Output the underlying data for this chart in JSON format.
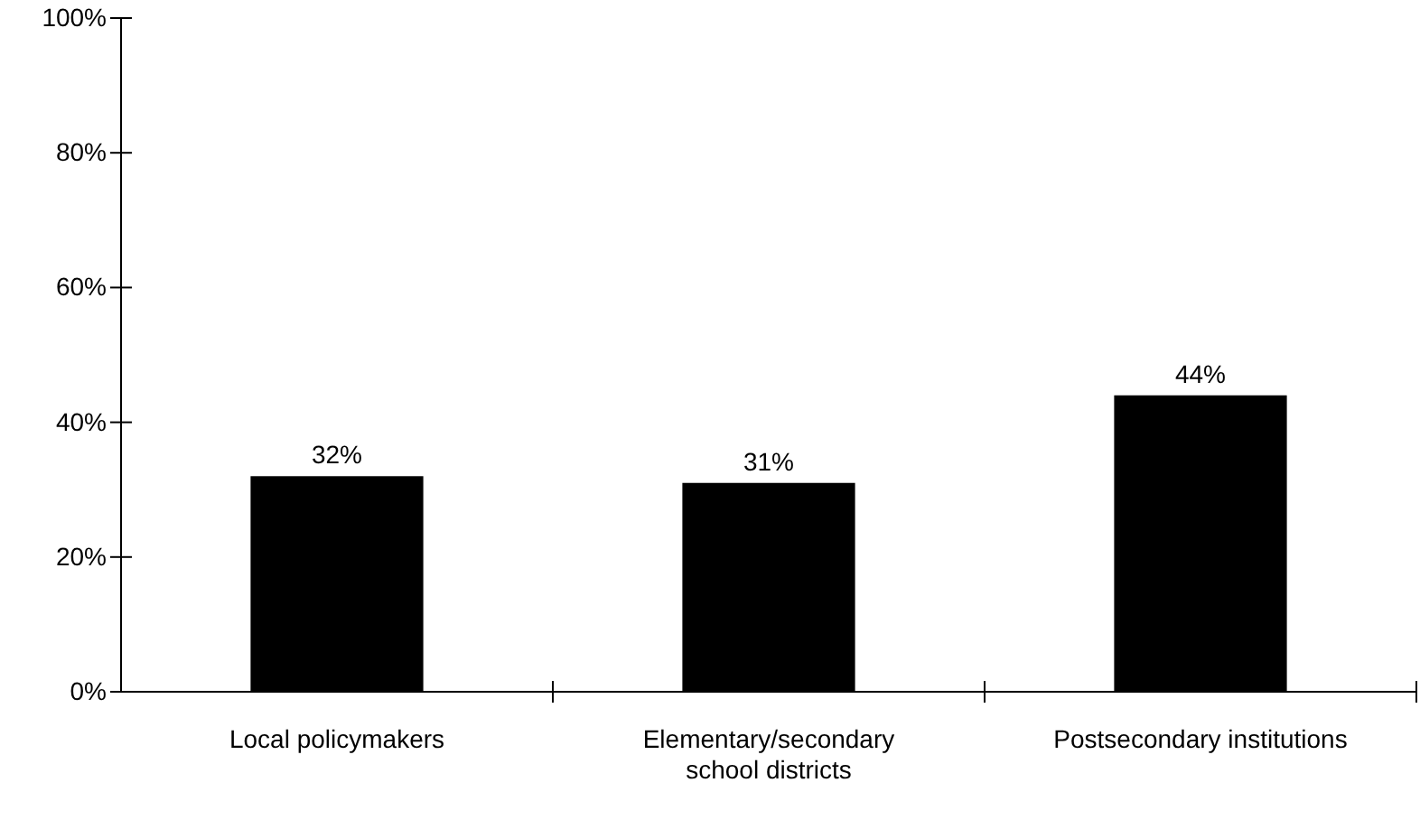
{
  "chart_data": {
    "type": "bar",
    "categories": [
      "Local policymakers",
      "Elementary/secondary school districts",
      "Postsecondary institutions"
    ],
    "values": [
      32,
      31,
      44
    ],
    "color": "#000000",
    "value_labels": [
      "32%",
      "31%",
      "44%"
    ],
    "ylim": [
      0,
      100
    ],
    "yticks": [
      {
        "value": 0,
        "label": "0%"
      },
      {
        "value": 20,
        "label": "20%"
      },
      {
        "value": 40,
        "label": "40%"
      },
      {
        "value": 60,
        "label": "60%"
      },
      {
        "value": 80,
        "label": "80%"
      },
      {
        "value": 100,
        "label": "100%"
      }
    ],
    "grid": false
  }
}
